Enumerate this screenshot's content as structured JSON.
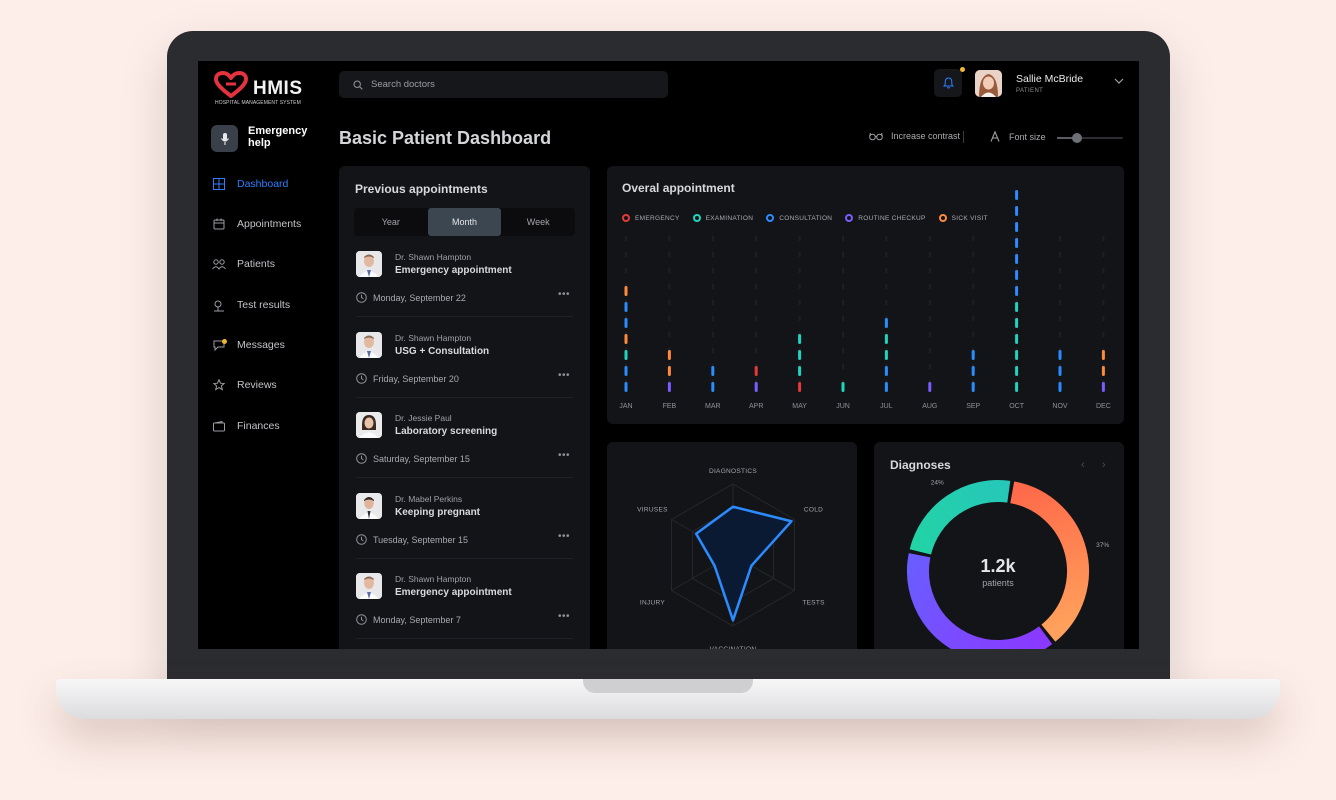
{
  "app": {
    "name": "HMIS",
    "subtitle": "HOSPITAL MANAGEMENT SYSTEM",
    "brand_color": "#e4333f",
    "accent_color": "#2d7fff"
  },
  "sidebar": {
    "emergency_label": "Emergency help",
    "items": [
      {
        "label": "Dashboard",
        "icon": "grid-icon",
        "active": true
      },
      {
        "label": "Appointments",
        "icon": "calendar-icon",
        "active": false
      },
      {
        "label": "Patients",
        "icon": "users-icon",
        "active": false
      },
      {
        "label": "Test results",
        "icon": "flask-icon",
        "active": false
      },
      {
        "label": "Messages",
        "icon": "chat-icon",
        "active": false,
        "badge": true
      },
      {
        "label": "Reviews",
        "icon": "star-icon",
        "active": false
      },
      {
        "label": "Finances",
        "icon": "wallet-icon",
        "active": false
      }
    ]
  },
  "header": {
    "search_placeholder": "Search doctors",
    "user_name": "Sallie McBride",
    "user_role": "PATIENT",
    "page_title": "Basic Patient Dashboard",
    "increase_contrast": "Increase contrast",
    "font_size": "Font size",
    "font_size_level": 0.3
  },
  "appointments": {
    "title": "Previous appointments",
    "tabs": [
      "Year",
      "Month",
      "Week"
    ],
    "active_tab": "Month",
    "items": [
      {
        "doctor": "Dr. Shawn Hampton",
        "type": "Emergency appointment",
        "date": "Monday, September 22"
      },
      {
        "doctor": "Dr. Shawn Hampton",
        "type": "USG + Consultation",
        "date": "Friday, September 20"
      },
      {
        "doctor": "Dr. Jessie Paul",
        "type": "Laboratory screening",
        "date": "Saturday, September 15"
      },
      {
        "doctor": "Dr. Mabel Perkins",
        "type": "Keeping pregnant",
        "date": "Tuesday, September 15"
      },
      {
        "doctor": "Dr. Shawn Hampton",
        "type": "Emergency appointment",
        "date": "Monday, September 7"
      }
    ]
  },
  "overall": {
    "title": "Overal appointment",
    "legend": [
      {
        "label": "EMERGENCY",
        "color": "#e53a3a"
      },
      {
        "label": "EXAMINATION",
        "color": "#22d3c0"
      },
      {
        "label": "CONSULTATION",
        "color": "#2b8cff"
      },
      {
        "label": "ROUTINE CHECKUP",
        "color": "#7b5cff"
      },
      {
        "label": "SICK VISIT",
        "color": "#ff8a3d"
      }
    ]
  },
  "chart_data": [
    {
      "type": "scatter",
      "title": "Overal appointment",
      "categories": [
        "JAN",
        "FEB",
        "MAR",
        "APR",
        "MAY",
        "JUN",
        "JUL",
        "AUG",
        "SEP",
        "OCT",
        "NOV",
        "DEC"
      ],
      "stacks": [
        [
          "CONSULTATION",
          "CONSULTATION",
          "EXAMINATION",
          "SICK VISIT",
          "CONSULTATION",
          "CONSULTATION",
          "SICK VISIT"
        ],
        [
          "ROUTINE CHECKUP",
          "SICK VISIT",
          "SICK VISIT"
        ],
        [
          "CONSULTATION",
          "CONSULTATION"
        ],
        [
          "ROUTINE CHECKUP",
          "EMERGENCY"
        ],
        [
          "EMERGENCY",
          "EXAMINATION",
          "EXAMINATION",
          "EXAMINATION"
        ],
        [
          "EXAMINATION"
        ],
        [
          "CONSULTATION",
          "CONSULTATION",
          "EXAMINATION",
          "EXAMINATION",
          "CONSULTATION"
        ],
        [
          "ROUTINE CHECKUP"
        ],
        [
          "CONSULTATION",
          "CONSULTATION",
          "CONSULTATION"
        ],
        [
          "EXAMINATION",
          "EXAMINATION",
          "EXAMINATION",
          "EXAMINATION",
          "EXAMINATION",
          "EXAMINATION",
          "CONSULTATION",
          "CONSULTATION",
          "CONSULTATION",
          "CONSULTATION",
          "CONSULTATION",
          "CONSULTATION",
          "CONSULTATION"
        ],
        [
          "CONSULTATION",
          "CONSULTATION",
          "CONSULTATION"
        ],
        [
          "ROUTINE CHECKUP",
          "SICK VISIT",
          "SICK VISIT"
        ]
      ]
    },
    {
      "type": "radar",
      "axes": [
        "DIAGNOSTICS",
        "COLD",
        "TESTS",
        "VACCINATION",
        "INJURY",
        "VIRUSES"
      ],
      "values": [
        0.68,
        0.95,
        0.3,
        0.92,
        0.3,
        0.6
      ],
      "max": 1,
      "color": "#2b8cff"
    },
    {
      "type": "pie",
      "title": "Diagnoses",
      "center_value": "1.2k",
      "center_label": "patients",
      "slices": [
        {
          "label": "37%",
          "value": 37,
          "color_from": "#ff6a4a",
          "color_to": "#ffa15c"
        },
        {
          "label": "39%",
          "value": 39,
          "color_from": "#8a39ff",
          "color_to": "#6b5cff"
        },
        {
          "label": "24%",
          "value": 24,
          "color_from": "#22d3a6",
          "color_to": "#26c7b8"
        }
      ]
    }
  ]
}
